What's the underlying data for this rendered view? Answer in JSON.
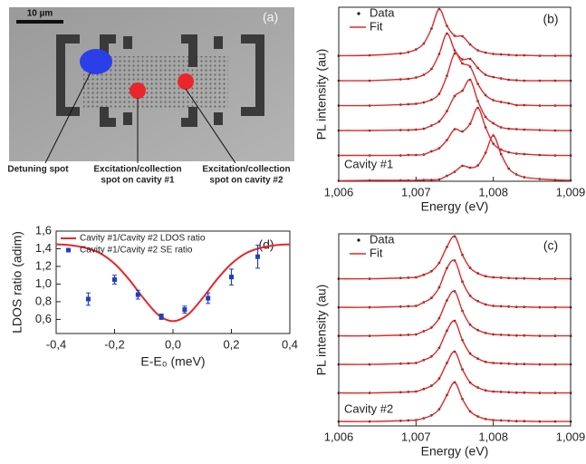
{
  "chart_data": [
    {
      "type": "image",
      "label": "(a)",
      "scale_bar": "10 µm",
      "annotations": [
        [
          "Detuning spot"
        ],
        [
          "Excitation/collection",
          "spot on cavity #1"
        ],
        [
          "Excitation/collection",
          "spot on cavity #2"
        ]
      ]
    },
    {
      "type": "spectra",
      "label": "(b)",
      "annotation": "Cavity #1",
      "xlabel": "Energy (eV)",
      "ylabel": "PL intensity (au)",
      "x": [
        1.006,
        1.0064,
        1.0068,
        1.0069,
        1.007,
        1.0071,
        1.0072,
        1.0073,
        1.0074,
        1.0075,
        1.0076,
        1.0077,
        1.0078,
        1.0079,
        1.008,
        1.0081,
        1.0082,
        1.0083,
        1.0084,
        1.0086,
        1.0088,
        1.009
      ],
      "xlim": [
        1.006,
        1.009
      ],
      "xticks": [
        {
          "value": 1.006,
          "label": "1,006"
        },
        {
          "value": 1.007,
          "label": "1,007"
        },
        {
          "value": 1.008,
          "label": "1,008"
        },
        {
          "value": 1.009,
          "label": "1,009"
        }
      ],
      "series": [
        {
          "name": "Data",
          "color": "#111111",
          "values": [
            [
              0.01,
              0.02,
              0.06,
              0.09,
              0.15,
              0.28,
              0.61,
              1.04,
              0.67,
              0.45,
              0.44,
              0.26,
              0.13,
              0.08,
              0.05,
              0.04,
              0.03,
              0.02,
              0.02,
              0.01,
              0.01,
              0.01
            ],
            [
              0.01,
              0.01,
              0.04,
              0.05,
              0.08,
              0.14,
              0.27,
              0.6,
              1.05,
              0.68,
              0.48,
              0.49,
              0.29,
              0.14,
              0.09,
              0.06,
              0.03,
              0.02,
              0.01,
              0.01,
              0.01,
              0.01
            ],
            [
              0.01,
              0.01,
              0.03,
              0.04,
              0.05,
              0.08,
              0.14,
              0.27,
              0.67,
              1.16,
              0.94,
              0.87,
              0.49,
              0.24,
              0.13,
              0.09,
              0.06,
              0.02,
              0.02,
              0.01,
              0.01,
              0.01
            ],
            [
              0.01,
              0.01,
              0.02,
              0.02,
              0.03,
              0.05,
              0.12,
              0.21,
              0.44,
              0.77,
              0.89,
              1.13,
              0.66,
              0.31,
              0.17,
              0.08,
              0.05,
              0.04,
              0.03,
              0.02,
              0.01,
              0.01
            ],
            [
              0.01,
              0.01,
              0.01,
              0.02,
              0.02,
              0.03,
              0.1,
              0.17,
              0.35,
              0.59,
              0.54,
              0.71,
              1.06,
              0.63,
              0.27,
              0.14,
              0.08,
              0.05,
              0.04,
              0.02,
              0.01,
              0.01
            ],
            [
              0,
              0.01,
              0.01,
              0.01,
              0.01,
              0.02,
              0.02,
              0.03,
              0.11,
              0.2,
              0.33,
              0.29,
              0.34,
              0.62,
              1,
              0.59,
              0.27,
              0.14,
              0.08,
              0.04,
              0.02,
              0.01
            ]
          ]
        },
        {
          "name": "Fit",
          "color": "#e02828",
          "values": [
            [
              0.01,
              0.02,
              0.06,
              0.09,
              0.15,
              0.28,
              0.61,
              1.04,
              0.67,
              0.45,
              0.44,
              0.26,
              0.13,
              0.08,
              0.05,
              0.04,
              0.03,
              0.02,
              0.02,
              0.01,
              0.01,
              0.01
            ],
            [
              0.01,
              0.01,
              0.04,
              0.05,
              0.08,
              0.14,
              0.27,
              0.6,
              1.05,
              0.68,
              0.48,
              0.49,
              0.29,
              0.14,
              0.09,
              0.06,
              0.03,
              0.02,
              0.01,
              0.01,
              0.01,
              0.01
            ],
            [
              0.01,
              0.01,
              0.03,
              0.04,
              0.05,
              0.08,
              0.14,
              0.27,
              0.67,
              1.16,
              0.94,
              0.87,
              0.49,
              0.24,
              0.13,
              0.09,
              0.06,
              0.02,
              0.02,
              0.01,
              0.01,
              0.01
            ],
            [
              0.01,
              0.01,
              0.02,
              0.02,
              0.03,
              0.05,
              0.12,
              0.21,
              0.44,
              0.77,
              0.89,
              1.13,
              0.66,
              0.31,
              0.17,
              0.08,
              0.05,
              0.04,
              0.03,
              0.02,
              0.01,
              0.01
            ],
            [
              0.01,
              0.01,
              0.01,
              0.02,
              0.02,
              0.03,
              0.1,
              0.17,
              0.35,
              0.59,
              0.54,
              0.71,
              1.06,
              0.63,
              0.27,
              0.14,
              0.08,
              0.05,
              0.04,
              0.02,
              0.01,
              0.01
            ],
            [
              0,
              0.01,
              0.01,
              0.01,
              0.01,
              0.02,
              0.02,
              0.03,
              0.11,
              0.2,
              0.33,
              0.29,
              0.34,
              0.62,
              1,
              0.59,
              0.27,
              0.14,
              0.08,
              0.04,
              0.02,
              0.01
            ]
          ]
        }
      ]
    },
    {
      "type": "spectra",
      "label": "(c)",
      "annotation": "Cavity #2",
      "xlabel": "Energy (eV)",
      "ylabel": "PL intensity (au)",
      "x": [
        1.006,
        1.0064,
        1.0068,
        1.0069,
        1.007,
        1.0071,
        1.0072,
        1.0073,
        1.0074,
        1.0075,
        1.0076,
        1.0077,
        1.0078,
        1.0079,
        1.008,
        1.0081,
        1.0082,
        1.0083,
        1.0084,
        1.0086,
        1.0088,
        1.009
      ],
      "xlim": [
        1.006,
        1.009
      ],
      "xticks": [
        {
          "value": 1.006,
          "label": "1,006"
        },
        {
          "value": 1.007,
          "label": "1,007"
        },
        {
          "value": 1.008,
          "label": "1,008"
        },
        {
          "value": 1.009,
          "label": "1,009"
        }
      ],
      "series": [
        {
          "name": "Data",
          "color": "#111111",
          "values": [
            [
              0.01,
              0.01,
              0.03,
              0.04,
              0.05,
              0.12,
              0.22,
              0.45,
              0.89,
              1.18,
              0.67,
              0.31,
              0.16,
              0.08,
              0.05,
              0.04,
              0.03,
              0.02,
              0.02,
              0.01,
              0.01,
              0.01
            ],
            [
              0.01,
              0.01,
              0.03,
              0.04,
              0.05,
              0.15,
              0.27,
              0.56,
              1.09,
              1.3,
              0.72,
              0.33,
              0.18,
              0.09,
              0.05,
              0.04,
              0.03,
              0.02,
              0.02,
              0.01,
              0.01,
              0.01
            ],
            [
              0.01,
              0.01,
              0.03,
              0.04,
              0.05,
              0.14,
              0.24,
              0.5,
              0.99,
              1.24,
              0.7,
              0.32,
              0.17,
              0.09,
              0.05,
              0.04,
              0.03,
              0.02,
              0.02,
              0.01,
              0.01,
              0.01
            ],
            [
              0.01,
              0.01,
              0.03,
              0.04,
              0.05,
              0.13,
              0.23,
              0.47,
              0.94,
              1.21,
              0.68,
              0.31,
              0.17,
              0.08,
              0.05,
              0.04,
              0.03,
              0.02,
              0.02,
              0.01,
              0.01,
              0.01
            ],
            [
              0.01,
              0.01,
              0.03,
              0.04,
              0.05,
              0.12,
              0.21,
              0.41,
              0.84,
              1.15,
              0.66,
              0.3,
              0.16,
              0.08,
              0.05,
              0.04,
              0.03,
              0.02,
              0.02,
              0.01,
              0.01,
              0.01
            ],
            [
              0.01,
              0.01,
              0.03,
              0.04,
              0.05,
              0.1,
              0.18,
              0.35,
              0.74,
              1.09,
              0.63,
              0.29,
              0.15,
              0.08,
              0.05,
              0.04,
              0.03,
              0.02,
              0.02,
              0.01,
              0.01,
              0.01
            ]
          ]
        },
        {
          "name": "Fit",
          "color": "#e02828",
          "values": [
            [
              0.01,
              0.01,
              0.03,
              0.04,
              0.05,
              0.12,
              0.22,
              0.45,
              0.89,
              1.18,
              0.67,
              0.31,
              0.16,
              0.08,
              0.05,
              0.04,
              0.03,
              0.02,
              0.02,
              0.01,
              0.01,
              0.01
            ],
            [
              0.01,
              0.01,
              0.03,
              0.04,
              0.05,
              0.15,
              0.27,
              0.56,
              1.09,
              1.3,
              0.72,
              0.33,
              0.18,
              0.09,
              0.05,
              0.04,
              0.03,
              0.02,
              0.02,
              0.01,
              0.01,
              0.01
            ],
            [
              0.01,
              0.01,
              0.03,
              0.04,
              0.05,
              0.14,
              0.24,
              0.5,
              0.99,
              1.24,
              0.7,
              0.32,
              0.17,
              0.09,
              0.05,
              0.04,
              0.03,
              0.02,
              0.02,
              0.01,
              0.01,
              0.01
            ],
            [
              0.01,
              0.01,
              0.03,
              0.04,
              0.05,
              0.13,
              0.23,
              0.47,
              0.94,
              1.21,
              0.68,
              0.31,
              0.17,
              0.08,
              0.05,
              0.04,
              0.03,
              0.02,
              0.02,
              0.01,
              0.01,
              0.01
            ],
            [
              0.01,
              0.01,
              0.03,
              0.04,
              0.05,
              0.12,
              0.21,
              0.41,
              0.84,
              1.15,
              0.66,
              0.3,
              0.16,
              0.08,
              0.05,
              0.04,
              0.03,
              0.02,
              0.02,
              0.01,
              0.01,
              0.01
            ],
            [
              0.01,
              0.01,
              0.03,
              0.04,
              0.05,
              0.1,
              0.18,
              0.35,
              0.74,
              1.09,
              0.63,
              0.29,
              0.15,
              0.08,
              0.05,
              0.04,
              0.03,
              0.02,
              0.02,
              0.01,
              0.01,
              0.01
            ]
          ]
        }
      ]
    },
    {
      "type": "line",
      "label": "(d)",
      "xlabel": "E-E₀ (meV)",
      "ylabel": "LDOS ratio (adim)",
      "xlim": [
        -0.4,
        0.4
      ],
      "ylim": [
        0.44,
        1.6
      ],
      "xticks": [
        {
          "value": -0.4,
          "label": "-0,4"
        },
        {
          "value": -0.2,
          "label": "-0,2"
        },
        {
          "value": 0,
          "label": "0,0"
        },
        {
          "value": 0.2,
          "label": "0,2"
        },
        {
          "value": 0.4,
          "label": "0,4"
        }
      ],
      "yticks": [
        {
          "value": 0.6,
          "label": "0,6"
        },
        {
          "value": 0.8,
          "label": "0,8"
        },
        {
          "value": 1.0,
          "label": "1,0"
        },
        {
          "value": 1.2,
          "label": "1,2"
        },
        {
          "value": 1.4,
          "label": "1,4"
        },
        {
          "value": 1.6,
          "label": "1,6"
        }
      ],
      "series": [
        {
          "name": "Cavity #1/Cavity #2 LDOS ratio",
          "color": "#e8262b",
          "style": "line",
          "x": [
            -0.4,
            -0.35,
            -0.3,
            -0.25,
            -0.2,
            -0.15,
            -0.1,
            -0.05,
            0,
            0.05,
            0.1,
            0.15,
            0.2,
            0.25,
            0.3,
            0.35,
            0.4
          ],
          "values": [
            1.45,
            1.44,
            1.41,
            1.35,
            1.23,
            1.05,
            0.835,
            0.65,
            0.58,
            0.65,
            0.835,
            1.05,
            1.23,
            1.35,
            1.41,
            1.44,
            1.45
          ]
        },
        {
          "name": "Cavity #1/Cavity #2 SE ratio",
          "color": "#1f3fbf",
          "style": "errorbar",
          "x": [
            -0.29,
            -0.2,
            -0.12,
            -0.04,
            0.04,
            0.12,
            0.2,
            0.29
          ],
          "values": [
            0.83,
            1.05,
            0.88,
            0.63,
            0.71,
            0.84,
            1.08,
            1.31
          ],
          "errors": [
            0.07,
            0.05,
            0.05,
            0.03,
            0.04,
            0.06,
            0.09,
            0.13
          ]
        }
      ]
    }
  ]
}
